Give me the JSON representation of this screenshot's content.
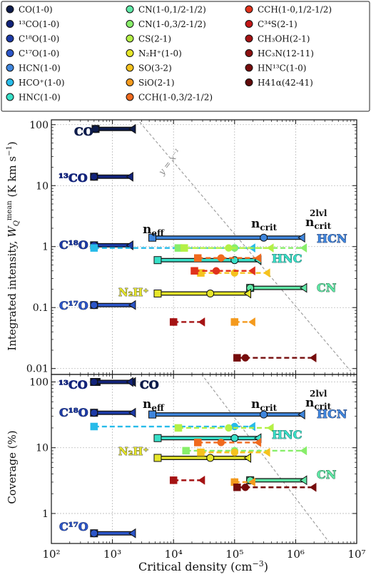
{
  "legend": {
    "columns": [
      [
        {
          "label": "CO(1-0)",
          "color": "#0d1b4a"
        },
        {
          "label": "¹³CO(1-0)",
          "color": "#12237a"
        },
        {
          "label": "C¹⁸O(1-0)",
          "color": "#1c3aa6"
        },
        {
          "label": "C¹⁷O(1-0)",
          "color": "#2b55c8"
        },
        {
          "label": "HCN(1-0)",
          "color": "#3f86dd"
        },
        {
          "label": "HCO⁺(1-0)",
          "color": "#27bbe9"
        },
        {
          "label": "HNC(1-0)",
          "color": "#38e0c8"
        }
      ],
      [
        {
          "label": "CN(1-0,1/2-1/2)",
          "color": "#5fe8a6"
        },
        {
          "label": "CN(1-0,3/2-1/2)",
          "color": "#88ee6a"
        },
        {
          "label": "CS(2-1)",
          "color": "#b4f046"
        },
        {
          "label": "N₂H⁺(1-0)",
          "color": "#e6e62a"
        },
        {
          "label": "SO(3-2)",
          "color": "#f5c21e"
        },
        {
          "label": "SiO(2-1)",
          "color": "#f49a1d"
        },
        {
          "label": "CCH(1-0,3/2-1/2)",
          "color": "#f06a1e"
        }
      ],
      [
        {
          "label": "CCH(1-0,1/2-1/2)",
          "color": "#e0321c"
        },
        {
          "label": "C³⁴S(2-1)",
          "color": "#c41818"
        },
        {
          "label": "CH₃OH(2-1)",
          "color": "#a51314"
        },
        {
          "label": "HC₃N(12-11)",
          "color": "#8c1010"
        },
        {
          "label": "HN¹³C(1-0)",
          "color": "#760c0c"
        },
        {
          "label": "H41α(42-41)",
          "color": "#600a0a"
        }
      ]
    ]
  },
  "chart_data": [
    {
      "type": "scatter",
      "panel": "top",
      "ylabel": "Integrated intensity, W_Q^mean (K km s⁻¹)",
      "xscale": "log",
      "yscale": "log",
      "xlim": [
        100,
        10000000
      ],
      "ylim": [
        0.008,
        120
      ],
      "xticks": [
        "10²",
        "10³",
        "10⁴",
        "10⁵",
        "10⁶",
        "10⁷"
      ],
      "yticks": [
        "0.01",
        "0.1",
        "1",
        "10",
        "100"
      ],
      "grid": true,
      "reference_line": {
        "label": "y = x⁻¹"
      },
      "annotations": [
        "CO",
        "¹³CO",
        "C¹⁸O",
        "C¹⁷O",
        "N₂H⁺",
        "HCN",
        "HNC",
        "CN",
        "n_eff",
        "n_crit",
        "n_crit^2lvl"
      ],
      "series": [
        {
          "name": "CO(1-0)",
          "y": 85,
          "n_eff": 530,
          "n_crit": 530,
          "n_crit_2lvl": 2200,
          "style": "solid"
        },
        {
          "name": "¹³CO(1-0)",
          "y": 14,
          "n_eff": 500,
          "n_crit": 500,
          "n_crit_2lvl": 2000,
          "style": "solid"
        },
        {
          "name": "C¹⁸O(1-0)",
          "y": 1.05,
          "n_eff": 500,
          "n_crit": 500,
          "n_crit_2lvl": 2000,
          "style": "solid"
        },
        {
          "name": "C¹⁷O(1-0)",
          "y": 0.11,
          "n_eff": 500,
          "n_crit": 500,
          "n_crit_2lvl": 2200,
          "style": "solid"
        },
        {
          "name": "HCN(1-0)",
          "y": 1.4,
          "n_eff": 4500,
          "n_crit": 300000,
          "n_crit_2lvl": 1300000,
          "style": "solid"
        },
        {
          "name": "HCO⁺(1-0)",
          "y": 0.95,
          "n_eff": 500,
          "n_crit": 100000,
          "n_crit_2lvl": 200000,
          "style": "dashed"
        },
        {
          "name": "HNC(1-0)",
          "y": 0.6,
          "n_eff": 5500,
          "n_crit": 100000,
          "n_crit_2lvl": 250000,
          "style": "solid"
        },
        {
          "name": "CN(1-0,1/2-1/2)",
          "y": 0.21,
          "n_eff": 180000,
          "n_crit": 180000,
          "n_crit_2lvl": 1400000,
          "style": "solid"
        },
        {
          "name": "CN(1-0,3/2-1/2)",
          "y": 0.95,
          "n_eff": 12000,
          "n_crit": 100000,
          "n_crit_2lvl": 1400000,
          "style": "dashed"
        },
        {
          "name": "CS(2-1)",
          "y": 0.95,
          "n_eff": 15000,
          "n_crit": 80000,
          "n_crit_2lvl": 400000,
          "style": "dashed"
        },
        {
          "name": "N₂H⁺(1-0)",
          "y": 0.17,
          "n_eff": 5500,
          "n_crit": 40000,
          "n_crit_2lvl": 170000,
          "style": "solid"
        },
        {
          "name": "SO(3-2)",
          "y": 0.37,
          "n_eff": 28000,
          "n_crit": 100000,
          "n_crit_2lvl": 350000,
          "style": "dashed"
        },
        {
          "name": "SiO(2-1)",
          "y": 0.058,
          "n_eff": 100000,
          "n_crit": 100000,
          "n_crit_2lvl": 200000,
          "style": "dashed"
        },
        {
          "name": "CCH(1-0,3/2-1/2)",
          "y": 0.65,
          "n_eff": 25000,
          "n_crit": 60000,
          "n_crit_2lvl": 250000,
          "style": "dashed"
        },
        {
          "name": "CCH(1-0,1/2-1/2)",
          "y": 0.4,
          "n_eff": 22000,
          "n_crit": 50000,
          "n_crit_2lvl": 200000,
          "style": "dashed"
        },
        {
          "name": "CH₃OH(2-1)",
          "y": 0.058,
          "n_eff": 10000,
          "n_crit": 10000,
          "n_crit_2lvl": 30000,
          "style": "dashed"
        },
        {
          "name": "HN¹³C(1-0)",
          "y": 0.015,
          "n_eff": 110000,
          "n_crit": 150000,
          "n_crit_2lvl": 2000000,
          "style": "dashed"
        }
      ]
    },
    {
      "type": "scatter",
      "panel": "bottom",
      "xlabel": "Critical density (cm⁻³)",
      "ylabel": "Coverage (%)",
      "xscale": "log",
      "yscale": "log",
      "xlim": [
        100,
        10000000
      ],
      "ylim": [
        0.35,
        130
      ],
      "xticks": [
        "10²",
        "10³",
        "10⁴",
        "10⁵",
        "10⁶",
        "10⁷"
      ],
      "yticks": [
        "1",
        "10",
        "100"
      ],
      "grid": true,
      "annotations": [
        "¹³CO",
        "CO",
        "C¹⁸O",
        "C¹⁷O",
        "N₂H⁺",
        "HCN",
        "HNC",
        "CN",
        "n_eff",
        "n_crit",
        "n_crit^2lvl"
      ],
      "series": [
        {
          "name": "CO(1-0)",
          "y": 100,
          "n_eff": 550,
          "n_crit": 550,
          "n_crit_2lvl": 2200,
          "style": "solid"
        },
        {
          "name": "¹³CO(1-0)",
          "y": 100,
          "n_eff": 500,
          "n_crit": 500,
          "n_crit_2lvl": 2000,
          "style": "solid"
        },
        {
          "name": "C¹⁸O(1-0)",
          "y": 34,
          "n_eff": 500,
          "n_crit": 500,
          "n_crit_2lvl": 2200,
          "style": "solid"
        },
        {
          "name": "C¹⁷O(1-0)",
          "y": 0.5,
          "n_eff": 500,
          "n_crit": 500,
          "n_crit_2lvl": 2200,
          "style": "solid"
        },
        {
          "name": "HCN(1-0)",
          "y": 32,
          "n_eff": 4500,
          "n_crit": 300000,
          "n_crit_2lvl": 1300000,
          "style": "solid"
        },
        {
          "name": "HCO⁺(1-0)",
          "y": 21,
          "n_eff": 500,
          "n_crit": 100000,
          "n_crit_2lvl": 200000,
          "style": "dashed"
        },
        {
          "name": "HNC(1-0)",
          "y": 14,
          "n_eff": 5500,
          "n_crit": 100000,
          "n_crit_2lvl": 250000,
          "style": "solid"
        },
        {
          "name": "CN(1-0,1/2-1/2)",
          "y": 3.2,
          "n_eff": 180000,
          "n_crit": 180000,
          "n_crit_2lvl": 1400000,
          "style": "solid"
        },
        {
          "name": "CN(1-0,3/2-1/2)",
          "y": 9,
          "n_eff": 16000,
          "n_crit": 100000,
          "n_crit_2lvl": 1400000,
          "style": "dashed"
        },
        {
          "name": "CS(2-1)",
          "y": 20,
          "n_eff": 12000,
          "n_crit": 80000,
          "n_crit_2lvl": 400000,
          "style": "dashed"
        },
        {
          "name": "N₂H⁺(1-0)",
          "y": 7,
          "n_eff": 5500,
          "n_crit": 40000,
          "n_crit_2lvl": 170000,
          "style": "solid"
        },
        {
          "name": "SO(3-2)",
          "y": 8.5,
          "n_eff": 28000,
          "n_crit": 100000,
          "n_crit_2lvl": 350000,
          "style": "dashed"
        },
        {
          "name": "SiO(2-1)",
          "y": 3,
          "n_eff": 100000,
          "n_crit": 100000,
          "n_crit_2lvl": 200000,
          "style": "dashed"
        },
        {
          "name": "CCH(1-0,3/2-1/2)",
          "y": 12,
          "n_eff": 25000,
          "n_crit": 60000,
          "n_crit_2lvl": 250000,
          "style": "dashed"
        },
        {
          "name": "CH₃OH(2-1)",
          "y": 3.2,
          "n_eff": 10000,
          "n_crit": 10000,
          "n_crit_2lvl": 30000,
          "style": "dashed"
        },
        {
          "name": "HN¹³C(1-0)",
          "y": 2.5,
          "n_eff": 110000,
          "n_crit": 150000,
          "n_crit_2lvl": 2000000,
          "style": "dashed"
        }
      ]
    }
  ]
}
